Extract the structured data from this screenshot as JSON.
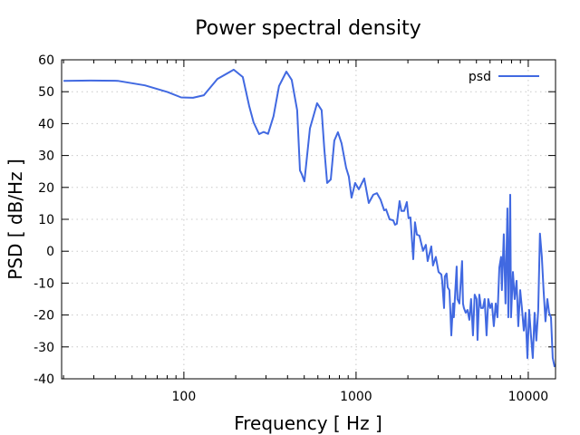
{
  "chart_data": {
    "type": "line",
    "title": "Power spectral density",
    "xlabel": "Frequency [ Hz ]",
    "ylabel": "PSD [ dB/Hz ]",
    "xscale": "log",
    "xlim": [
      19.5,
      14400
    ],
    "ylim": [
      -40,
      60
    ],
    "xticks": [
      100,
      1000,
      10000
    ],
    "xtick_labels": [
      "100",
      "1000",
      "10000"
    ],
    "yticks": [
      -40,
      -30,
      -20,
      -10,
      0,
      10,
      20,
      30,
      40,
      50,
      60
    ],
    "ytick_labels": [
      "-40",
      "-30",
      "-20",
      "-10",
      "0",
      "10",
      "20",
      "30",
      "40",
      "50",
      "60"
    ],
    "grid": true,
    "legend_position": "top-right",
    "series": [
      {
        "name": "psd",
        "color": "#4169e1",
        "points": [
          [
            20,
            53.4
          ],
          [
            28.7,
            53.5
          ],
          [
            41.3,
            53.4
          ],
          [
            59.4,
            52
          ],
          [
            80.4,
            49.9
          ],
          [
            96.4,
            48.2
          ],
          [
            113,
            48.1
          ],
          [
            130.6,
            48.9
          ],
          [
            156.6,
            54
          ],
          [
            194.7,
            56.9
          ],
          [
            219.8,
            54.6
          ],
          [
            239.3,
            45.6
          ],
          [
            254,
            40.4
          ],
          [
            273.3,
            36.7
          ],
          [
            290.3,
            37.4
          ],
          [
            308.4,
            36.8
          ],
          [
            331.7,
            42.3
          ],
          [
            357,
            51.8
          ],
          [
            393.6,
            56.3
          ],
          [
            422.9,
            53.7
          ],
          [
            455,
            44.2
          ],
          [
            472,
            25.3
          ],
          [
            483.4,
            24.2
          ],
          [
            501.2,
            21.9
          ],
          [
            539.6,
            38.5
          ],
          [
            594,
            46.4
          ],
          [
            631,
            44.2
          ],
          [
            654.6,
            31.9
          ],
          [
            679,
            21.4
          ],
          [
            712.8,
            22.5
          ],
          [
            747.6,
            34.7
          ],
          [
            784.7,
            37.3
          ],
          [
            823.6,
            33.8
          ],
          [
            874.9,
            26.2
          ],
          [
            907.8,
            23.4
          ],
          [
            941.4,
            16.8
          ],
          [
            988.5,
            21.4
          ],
          [
            1037,
            19.4
          ],
          [
            1115,
            22.8
          ],
          [
            1185,
            15.1
          ],
          [
            1259,
            17.7
          ],
          [
            1321,
            18.2
          ],
          [
            1387,
            16.2
          ],
          [
            1456,
            12.8
          ],
          [
            1493,
            13.1
          ],
          [
            1566,
            10
          ],
          [
            1644,
            9.7
          ],
          [
            1683,
            8.3
          ],
          [
            1726,
            8.6
          ],
          [
            1790,
            15.7
          ],
          [
            1832,
            12.6
          ],
          [
            1901,
            12.6
          ],
          [
            1972,
            15.4
          ],
          [
            2018,
            10.3
          ],
          [
            2070,
            10.6
          ],
          [
            2148,
            -2.5
          ],
          [
            2198,
            9.1
          ],
          [
            2254,
            5.2
          ],
          [
            2333,
            4.9
          ],
          [
            2449,
            0.1
          ],
          [
            2541,
            2
          ],
          [
            2606,
            -3.1
          ],
          [
            2735,
            1.5
          ],
          [
            2799,
            -4.5
          ],
          [
            2904,
            -1.8
          ],
          [
            3013,
            -6.5
          ],
          [
            3126,
            -7.3
          ],
          [
            3162,
            -9.3
          ],
          [
            3243,
            -17.8
          ],
          [
            3281,
            -7.9
          ],
          [
            3357,
            -7
          ],
          [
            3404,
            -11.3
          ],
          [
            3483,
            -12.2
          ],
          [
            3524,
            -17.8
          ],
          [
            3573,
            -26.4
          ],
          [
            3656,
            -16.4
          ],
          [
            3698,
            -20.7
          ],
          [
            3837,
            -4.8
          ],
          [
            3882,
            -15
          ],
          [
            3981,
            -16.4
          ],
          [
            4130,
            -3.1
          ],
          [
            4178,
            -16.4
          ],
          [
            4227,
            -17.8
          ],
          [
            4335,
            -19.3
          ],
          [
            4436,
            -18.4
          ],
          [
            4550,
            -21.5
          ],
          [
            4656,
            -15
          ],
          [
            4775,
            -26.4
          ],
          [
            4887,
            -13.6
          ],
          [
            5012,
            -15
          ],
          [
            5070,
            -27.8
          ],
          [
            5200,
            -13.6
          ],
          [
            5321,
            -17.8
          ],
          [
            5458,
            -17.8
          ],
          [
            5585,
            -15
          ],
          [
            5728,
            -26.4
          ],
          [
            5861,
            -15
          ],
          [
            6012,
            -17.8
          ],
          [
            6152,
            -16.4
          ],
          [
            6310,
            -23.5
          ],
          [
            6471,
            -16.4
          ],
          [
            6622,
            -20.7
          ],
          [
            6792,
            -5.1
          ],
          [
            6950,
            -1.8
          ],
          [
            7031,
            -12.2
          ],
          [
            7211,
            5.3
          ],
          [
            7379,
            -16.4
          ],
          [
            7568,
            13.4
          ],
          [
            7656,
            -20.7
          ],
          [
            7852,
            17.7
          ],
          [
            7943,
            -20.7
          ],
          [
            8147,
            -6.5
          ],
          [
            8337,
            -15
          ],
          [
            8551,
            -9.3
          ],
          [
            8750,
            -23.5
          ],
          [
            8974,
            -12.2
          ],
          [
            9183,
            -17.8
          ],
          [
            9419,
            -24.9
          ],
          [
            9638,
            -19.3
          ],
          [
            9886,
            -33.5
          ],
          [
            10116,
            -18.4
          ],
          [
            10375,
            -26.4
          ],
          [
            10617,
            -33.5
          ],
          [
            10889,
            -19.3
          ],
          [
            11143,
            -28
          ],
          [
            11429,
            -18.4
          ],
          [
            11695,
            5.5
          ],
          [
            11995,
            -1.8
          ],
          [
            12274,
            -12.2
          ],
          [
            12589,
            -22
          ],
          [
            12912,
            -15
          ],
          [
            13213,
            -19.3
          ],
          [
            13552,
            -20.7
          ],
          [
            13868,
            -33.5
          ],
          [
            14223,
            -36.3
          ]
        ]
      }
    ]
  }
}
